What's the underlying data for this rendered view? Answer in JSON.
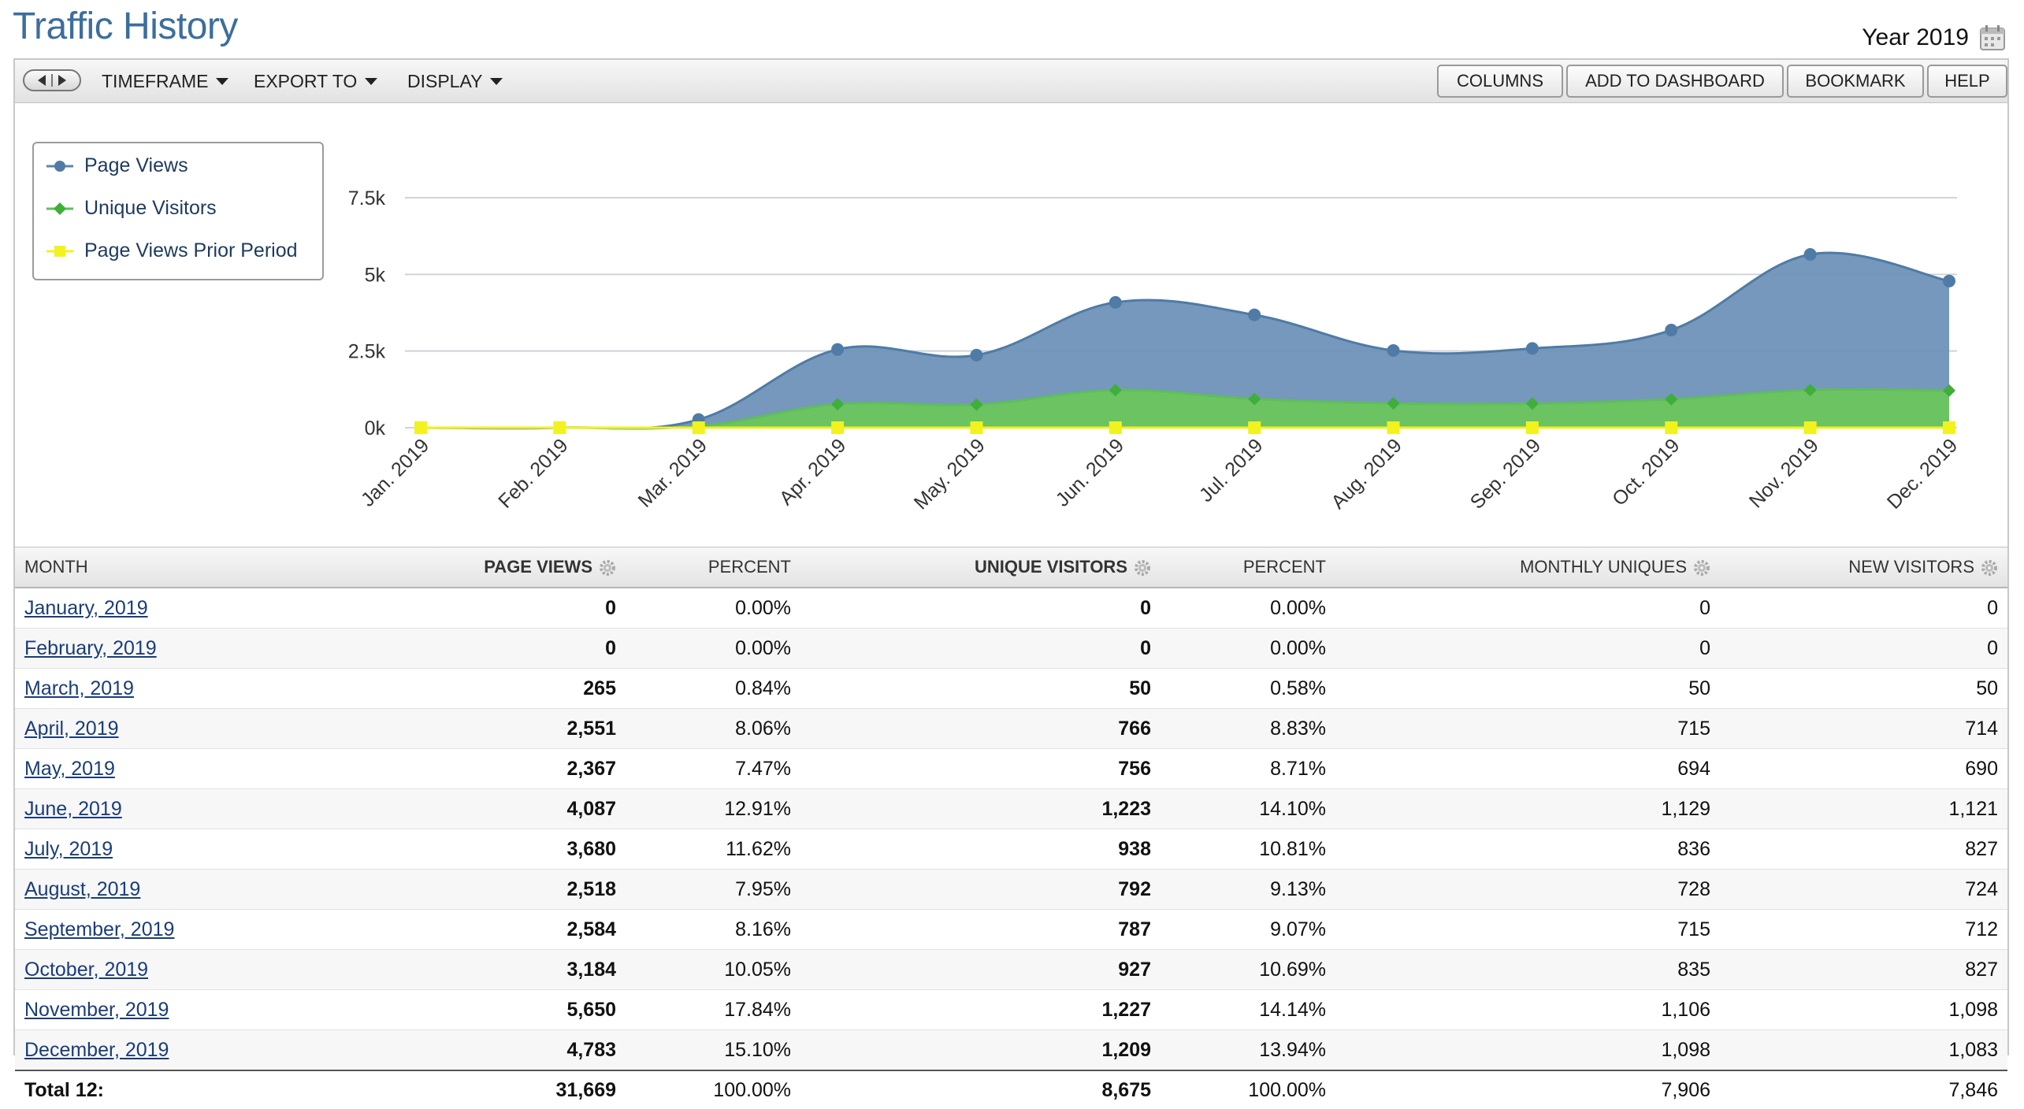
{
  "page": {
    "title": "Traffic History",
    "year_label": "Year 2019"
  },
  "toolbar": {
    "timeframe": "TIMEFRAME",
    "export_to": "EXPORT TO",
    "display": "DISPLAY",
    "columns": "COLUMNS",
    "add_to_dashboard": "ADD TO DASHBOARD",
    "bookmark": "BOOKMARK",
    "help": "HELP"
  },
  "chart_data": {
    "type": "area",
    "categories": [
      "Jan. 2019",
      "Feb. 2019",
      "Mar. 2019",
      "Apr. 2019",
      "May. 2019",
      "Jun. 2019",
      "Jul. 2019",
      "Aug. 2019",
      "Sep. 2019",
      "Oct. 2019",
      "Nov. 2019",
      "Dec. 2019"
    ],
    "series": [
      {
        "name": "Page Views",
        "color": "#5b84ad",
        "marker": "circle",
        "values": [
          0,
          0,
          265,
          2551,
          2367,
          4087,
          3680,
          2518,
          2584,
          3184,
          5650,
          4783
        ]
      },
      {
        "name": "Unique Visitors",
        "color": "#5fbe5a",
        "marker": "diamond",
        "values": [
          0,
          0,
          50,
          766,
          756,
          1223,
          938,
          792,
          787,
          927,
          1227,
          1209
        ]
      },
      {
        "name": "Page Views Prior Period",
        "color": "#f2f21e",
        "marker": "square",
        "values": [
          0,
          0,
          0,
          0,
          0,
          0,
          0,
          0,
          0,
          0,
          0,
          0
        ]
      }
    ],
    "yticks": [
      "0k",
      "2.5k",
      "5k",
      "7.5k"
    ],
    "ylim": [
      0,
      7500
    ],
    "grid": true,
    "legend_position": "left"
  },
  "table": {
    "headers": {
      "month": "MONTH",
      "page_views": "PAGE VIEWS",
      "pv_percent": "PERCENT",
      "unique_visitors": "UNIQUE VISITORS",
      "uv_percent": "PERCENT",
      "monthly_uniques": "MONTHLY UNIQUES",
      "new_visitors": "NEW VISITORS"
    },
    "rows": [
      {
        "month": "January, 2019",
        "page_views": "0",
        "pv_percent": "0.00%",
        "unique_visitors": "0",
        "uv_percent": "0.00%",
        "monthly_uniques": "0",
        "new_visitors": "0"
      },
      {
        "month": "February, 2019",
        "page_views": "0",
        "pv_percent": "0.00%",
        "unique_visitors": "0",
        "uv_percent": "0.00%",
        "monthly_uniques": "0",
        "new_visitors": "0"
      },
      {
        "month": "March, 2019",
        "page_views": "265",
        "pv_percent": "0.84%",
        "unique_visitors": "50",
        "uv_percent": "0.58%",
        "monthly_uniques": "50",
        "new_visitors": "50"
      },
      {
        "month": "April, 2019",
        "page_views": "2,551",
        "pv_percent": "8.06%",
        "unique_visitors": "766",
        "uv_percent": "8.83%",
        "monthly_uniques": "715",
        "new_visitors": "714"
      },
      {
        "month": "May, 2019",
        "page_views": "2,367",
        "pv_percent": "7.47%",
        "unique_visitors": "756",
        "uv_percent": "8.71%",
        "monthly_uniques": "694",
        "new_visitors": "690"
      },
      {
        "month": "June, 2019",
        "page_views": "4,087",
        "pv_percent": "12.91%",
        "unique_visitors": "1,223",
        "uv_percent": "14.10%",
        "monthly_uniques": "1,129",
        "new_visitors": "1,121"
      },
      {
        "month": "July, 2019",
        "page_views": "3,680",
        "pv_percent": "11.62%",
        "unique_visitors": "938",
        "uv_percent": "10.81%",
        "monthly_uniques": "836",
        "new_visitors": "827"
      },
      {
        "month": "August, 2019",
        "page_views": "2,518",
        "pv_percent": "7.95%",
        "unique_visitors": "792",
        "uv_percent": "9.13%",
        "monthly_uniques": "728",
        "new_visitors": "724"
      },
      {
        "month": "September, 2019",
        "page_views": "2,584",
        "pv_percent": "8.16%",
        "unique_visitors": "787",
        "uv_percent": "9.07%",
        "monthly_uniques": "715",
        "new_visitors": "712"
      },
      {
        "month": "October, 2019",
        "page_views": "3,184",
        "pv_percent": "10.05%",
        "unique_visitors": "927",
        "uv_percent": "10.69%",
        "monthly_uniques": "835",
        "new_visitors": "827"
      },
      {
        "month": "November, 2019",
        "page_views": "5,650",
        "pv_percent": "17.84%",
        "unique_visitors": "1,227",
        "uv_percent": "14.14%",
        "monthly_uniques": "1,106",
        "new_visitors": "1,098"
      },
      {
        "month": "December, 2019",
        "page_views": "4,783",
        "pv_percent": "15.10%",
        "unique_visitors": "1,209",
        "uv_percent": "13.94%",
        "monthly_uniques": "1,098",
        "new_visitors": "1,083"
      }
    ],
    "total": {
      "label": "Total 12:",
      "page_views": "31,669",
      "pv_percent": "100.00%",
      "unique_visitors": "8,675",
      "uv_percent": "100.00%",
      "monthly_uniques": "7,906",
      "new_visitors": "7,846"
    }
  }
}
